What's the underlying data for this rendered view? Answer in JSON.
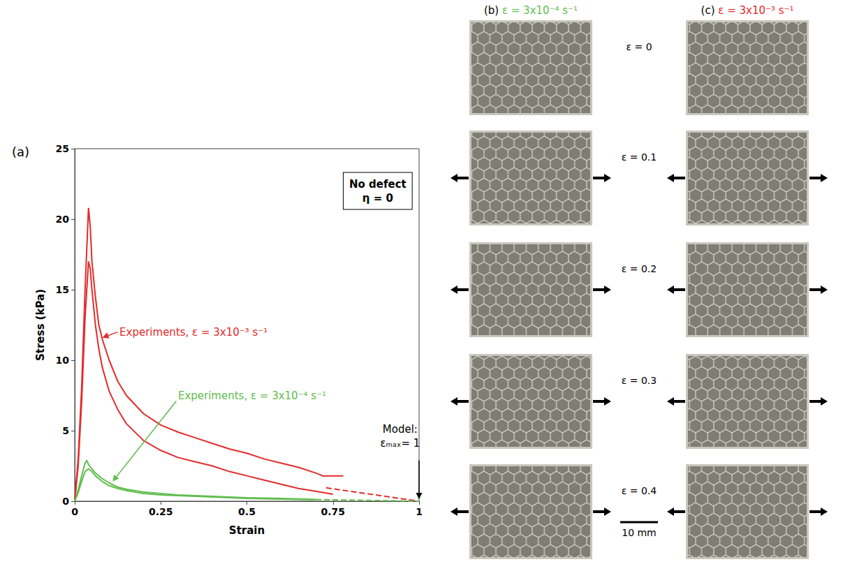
{
  "chart_data": {
    "type": "line",
    "title": "(a)",
    "x_label": "Strain",
    "y_label": "Stress (kPa)",
    "xlim": [
      0,
      1
    ],
    "xticks": [
      0,
      0.25,
      0.5,
      0.75,
      1
    ],
    "ylim": [
      0,
      25
    ],
    "yticks": [
      0,
      5,
      10,
      15,
      20,
      25
    ],
    "grid": false,
    "series": [
      {
        "color": "#e32b2b",
        "line_style": "solid",
        "x": [
          0,
          0.01,
          0.02,
          0.03,
          0.04,
          0.045,
          0.05,
          0.06,
          0.07,
          0.08,
          0.1,
          0.125,
          0.15,
          0.2,
          0.25,
          0.3,
          0.35,
          0.4,
          0.45,
          0.5,
          0.55,
          0.6,
          0.65,
          0.7,
          0.72,
          0.75,
          0.78
        ],
        "values": [
          0,
          3,
          8,
          15,
          20.8,
          19.5,
          17,
          14.5,
          12.5,
          11.5,
          10,
          8.5,
          7.5,
          6.2,
          5.4,
          4.9,
          4.5,
          4.1,
          3.7,
          3.4,
          3.0,
          2.7,
          2.4,
          2.0,
          1.8,
          1.8,
          1.8
        ]
      },
      {
        "color": "#e32b2b",
        "line_style": "solid",
        "x": [
          0,
          0.01,
          0.02,
          0.03,
          0.04,
          0.045,
          0.05,
          0.06,
          0.07,
          0.08,
          0.1,
          0.125,
          0.15,
          0.2,
          0.25,
          0.3,
          0.35,
          0.4,
          0.45,
          0.5,
          0.55,
          0.6,
          0.65,
          0.7,
          0.75
        ],
        "values": [
          0,
          2.5,
          7,
          13,
          17,
          16.5,
          15,
          12.5,
          10.8,
          9.5,
          7.8,
          6.5,
          5.5,
          4.3,
          3.6,
          3.1,
          2.8,
          2.5,
          2.1,
          1.8,
          1.5,
          1.2,
          0.9,
          0.7,
          0.5
        ]
      },
      {
        "color": "#e32b2b",
        "line_style": "dashed",
        "x": [
          0.73,
          1
        ],
        "values": [
          0.95,
          0
        ]
      },
      {
        "color": "#62bd4f",
        "line_style": "solid",
        "x": [
          0,
          0.01,
          0.02,
          0.03,
          0.035,
          0.04,
          0.05,
          0.06,
          0.08,
          0.1,
          0.125,
          0.15,
          0.2,
          0.25,
          0.3,
          0.4,
          0.5,
          0.6,
          0.7
        ],
        "values": [
          0,
          0.8,
          1.8,
          2.7,
          2.9,
          2.6,
          2.3,
          2.0,
          1.6,
          1.3,
          1.0,
          0.85,
          0.65,
          0.55,
          0.45,
          0.35,
          0.25,
          0.2,
          0.12
        ]
      },
      {
        "color": "#62bd4f",
        "line_style": "solid",
        "x": [
          0,
          0.01,
          0.02,
          0.03,
          0.04,
          0.05,
          0.06,
          0.08,
          0.1,
          0.125,
          0.15,
          0.2,
          0.25,
          0.3,
          0.4,
          0.5,
          0.6,
          0.7
        ],
        "values": [
          0,
          0.6,
          1.4,
          2.1,
          2.3,
          2.1,
          1.8,
          1.4,
          1.1,
          0.9,
          0.75,
          0.55,
          0.45,
          0.4,
          0.3,
          0.2,
          0.15,
          0.1
        ]
      },
      {
        "color": "#62bd4f",
        "line_style": "dashed",
        "x": [
          0.7,
          1
        ],
        "values": [
          0.12,
          0
        ]
      }
    ],
    "annotations": [
      {
        "text": "Experiments, ε = 3x10⁻³ s⁻¹",
        "x": 0.13,
        "y": 12,
        "color": "#e32b2b",
        "arrow": {
          "from": [
            0.125,
            12
          ],
          "to": [
            0.08,
            11.6
          ]
        }
      },
      {
        "text": "Experiments, ε = 3x10⁻⁴ s⁻¹",
        "x": 0.3,
        "y": 7.5,
        "color": "#62bd4f",
        "arrow": {
          "from": [
            0.295,
            7.1
          ],
          "to": [
            0.11,
            1.4
          ]
        }
      },
      {
        "text": "Model:\nεₘₐₓ= 1",
        "x": 0.945,
        "y": 4.6,
        "color": "#000000",
        "arrow": {
          "from": [
            1,
            2.9
          ],
          "to": [
            1,
            0.15
          ]
        }
      },
      {
        "text": "No defect\nη = 0",
        "x": 0.88,
        "y": 22,
        "color": "#000000"
      }
    ]
  },
  "panels": [
    {
      "label": "(b)",
      "rate": "ε = 3x10⁻⁴ s⁻¹",
      "color": "#62bd4f"
    },
    {
      "label": "(c)",
      "rate": "ε = 3x10⁻³ s⁻¹",
      "color": "#e32b2b"
    }
  ],
  "strain_rows": [
    "ε = 0",
    "ε = 0.1",
    "ε = 0.2",
    "ε = 0.3",
    "ε = 0.4"
  ],
  "scale_bar": "10 mm"
}
